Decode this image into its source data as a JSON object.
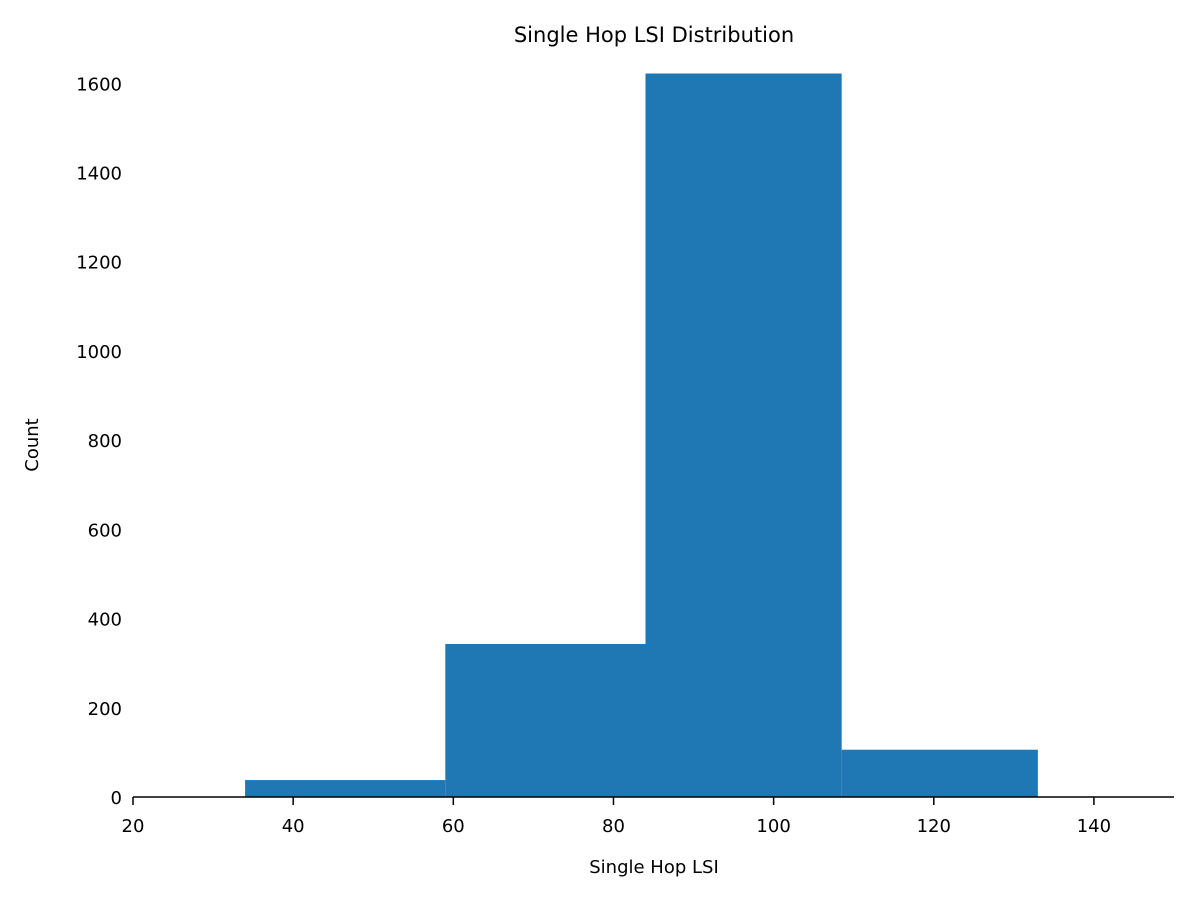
{
  "chart_data": {
    "type": "bar",
    "title": "Single Hop LSI Distribution",
    "xlabel": "Single Hop LSI",
    "ylabel": "Count",
    "xlim": [
      20,
      150
    ],
    "ylim": [
      0,
      1650
    ],
    "xticks": [
      20,
      40,
      60,
      80,
      100,
      120,
      140
    ],
    "yticks": [
      0,
      200,
      400,
      600,
      800,
      1000,
      1200,
      1400,
      1600
    ],
    "bins": [
      {
        "x0": 34,
        "x1": 59,
        "count": 38
      },
      {
        "x0": 59,
        "x1": 84,
        "count": 343
      },
      {
        "x0": 84,
        "x1": 108.5,
        "count": 1622
      },
      {
        "x0": 108.5,
        "x1": 133,
        "count": 106
      }
    ],
    "bar_color": "#1f77b4",
    "grid": false,
    "legend": "none"
  }
}
